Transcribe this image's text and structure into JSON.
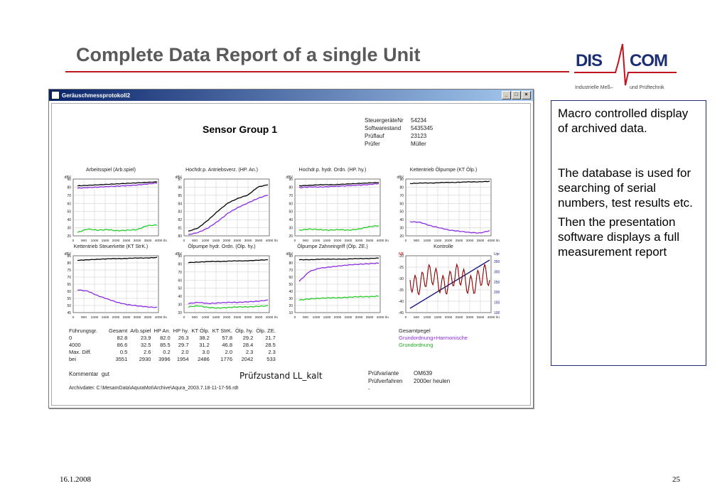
{
  "slide": {
    "title": "Complete Data Report of a single Unit",
    "date": "16.1.2008",
    "page": "25"
  },
  "logo": {
    "left": "DIS",
    "right": "COM",
    "sub_left": "Industrielle Meß–",
    "sub_right": "und Prüftechnik"
  },
  "window": {
    "title": "Geräuschmessprotokoll2",
    "group_label": "Sensor Group 1",
    "info": [
      {
        "key": "SteuergeräteNr",
        "value": "54234"
      },
      {
        "key": "Softwarestand",
        "value": "5435345"
      },
      {
        "key": "Prüflauf",
        "value": "23123"
      },
      {
        "key": "Prüfer",
        "value": "Müller"
      }
    ],
    "plots": [
      {
        "title": "Arbeitsspiel (Arb.spiel)",
        "yunit": "dBV",
        "yticks": [
          "90",
          "80",
          "70",
          "60",
          "50",
          "40",
          "30",
          "20"
        ],
        "xticks": [
          "0",
          "900",
          "1000",
          "1500",
          "2000",
          "2500",
          "3000",
          "3500",
          "4000"
        ],
        "xunit": "l/rd"
      },
      {
        "title": "Hochdr.p. Antriebsverz. (HP. An.)",
        "yunit": "dBV",
        "yticks": [
          "87",
          "86",
          "85",
          "84",
          "83",
          "82",
          "81",
          "80"
        ],
        "xticks": [
          "0",
          "900",
          "1000",
          "1500",
          "2000",
          "2500",
          "3000",
          "3500",
          "4000"
        ],
        "xunit": "l/rd"
      },
      {
        "title": "Hochdr.p. hydr. Ordn. (HP. hy.)",
        "yunit": "dBV",
        "yticks": [
          "90",
          "80",
          "70",
          "60",
          "50",
          "40",
          "30",
          "20"
        ],
        "xticks": [
          "0",
          "900",
          "1000",
          "1500",
          "2000",
          "2500",
          "3000",
          "3500",
          "4000"
        ],
        "xunit": "l/rd"
      },
      {
        "title": "Kettentrieb Ölpumpe (KT Ölp.)",
        "yunit": "dBV",
        "yticks": [
          "90",
          "80",
          "70",
          "60",
          "50",
          "40",
          "30",
          "20"
        ],
        "xticks": [
          "0",
          "900",
          "1000",
          "1500",
          "2000",
          "2500",
          "3000",
          "3500",
          "4000"
        ],
        "xunit": "l/rd"
      },
      {
        "title": "Kettentrieb Steuerkette (KT StrK.)",
        "yunit": "dBV",
        "yticks": [
          "85",
          "80",
          "75",
          "70",
          "65",
          "60",
          "55",
          "50",
          "45"
        ],
        "xticks": [
          "0",
          "900",
          "1000",
          "1500",
          "2000",
          "2500",
          "3000",
          "3500",
          "4000"
        ],
        "xunit": "l/rd"
      },
      {
        "title": "Ölpumpe hydr. Ordn. (Ölp. hy.)",
        "yunit": "dBV",
        "yticks": [
          "90",
          "80",
          "70",
          "60",
          "50",
          "40",
          "30",
          "20"
        ],
        "xticks": [
          "0",
          "900",
          "1000",
          "1500",
          "2000",
          "2500",
          "3000",
          "3500",
          "4000"
        ],
        "xunit": "l/rd"
      },
      {
        "title": "Ölpumpe Zahneingriff (Ölp. ZE.)",
        "yunit": "dBV",
        "yticks": [
          "90",
          "80",
          "70",
          "60",
          "50",
          "40",
          "30",
          "20",
          "10"
        ],
        "xticks": [
          "0",
          "900",
          "1000",
          "1500",
          "2000",
          "2500",
          "3000",
          "3500",
          "4000"
        ],
        "xunit": "l/rd"
      },
      {
        "title": "Kontrolle",
        "yunit": "NB",
        "yticks": [
          "-20",
          "-25",
          "-30",
          "-35",
          "-40",
          "-45"
        ],
        "xticks": [
          "0",
          "500",
          "1000",
          "1500",
          "2000",
          "2500",
          "3000",
          "3500",
          "4000"
        ],
        "xunit": "l/rd",
        "y2unit": "Upm",
        "y2ticks": [
          "3500",
          "3000",
          "2500",
          "2000",
          "1500",
          "1000"
        ]
      }
    ],
    "stats": {
      "headers": [
        "Führungsgr.",
        "Gesamt",
        "Arb.spiel",
        "HP An.",
        "HP hy.",
        "KT Ölp.",
        "KT StrK.",
        "Ölp. hy.",
        "Ölp. ZE."
      ],
      "rows": [
        [
          "0",
          "82.8",
          "23.9",
          "82.0",
          "26.3",
          "38.2",
          "57.8",
          "29.2",
          "21.7"
        ],
        [
          "4000",
          "86.6",
          "32.5",
          "85.5",
          "29.7",
          "31.2",
          "46.8",
          "28.4",
          "28.5"
        ],
        [
          "Max. Diff.",
          "0.5",
          "2.6",
          "0.2",
          "2.0",
          "3.0",
          "2.0",
          "2.3",
          "2.3"
        ],
        [
          "bei",
          "3551",
          "2930",
          "3996",
          "1954",
          "2486",
          "1776",
          "2042",
          "533"
        ]
      ]
    },
    "legend": {
      "title": "Gesamtpegel",
      "items": [
        "Grundordnung+Harmonische",
        "Grundordnung"
      ]
    },
    "comment_label": "Kommentar",
    "comment_value": "gut",
    "test_state": "Prüfzustand LL_kalt",
    "archive": "Archivdatei: C:\\MesamData\\AquraMot\\Archive\\Aqura_2003.7.18-11-17-56.rdt",
    "variant": [
      {
        "key": "Prüfvariante",
        "value": "OM639"
      },
      {
        "key": "Prüfverfahren",
        "value": "2000er heulen"
      },
      {
        "key": "-",
        "value": ""
      }
    ],
    "colors": {
      "black": "#000000",
      "purple": "#8a2be2",
      "green": "#22cc22",
      "navy": "#1c1c80",
      "maroon": "#8b0000"
    }
  },
  "sidebox": {
    "p1": "Macro controlled display of archived data.",
    "p2": "The database is used for searching of serial numbers, test results etc.",
    "p3": "Then the presentation software displays a full measurement report"
  }
}
